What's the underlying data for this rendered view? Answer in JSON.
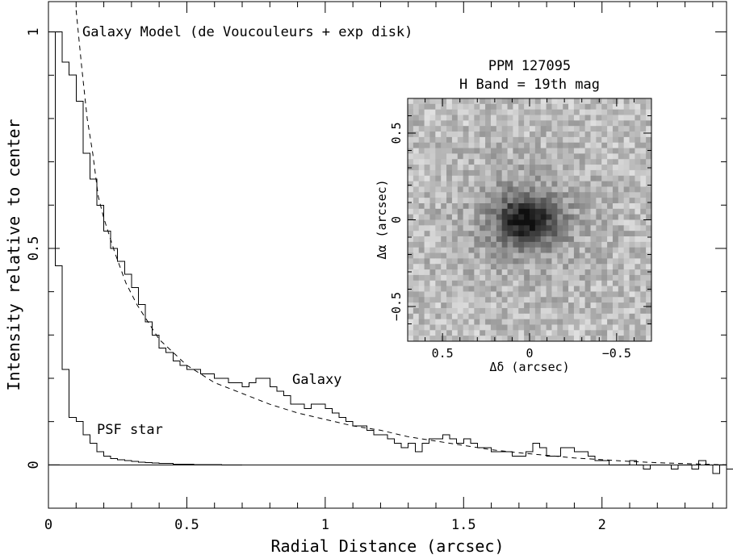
{
  "chart_data": {
    "type": "line",
    "xlabel": "Radial Distance (arcsec)",
    "ylabel": "Intensity relative to center",
    "xlim": [
      0,
      2.45
    ],
    "ylim": [
      -0.1,
      1.07
    ],
    "x_ticks": [
      "0",
      "0.5",
      "1",
      "1.5",
      "2"
    ],
    "y_ticks": [
      "0",
      "0.5",
      "1"
    ],
    "zero_line": true,
    "annotations": {
      "model": "Galaxy Model (de Voucouleurs + exp disk)",
      "galaxy": "Galaxy",
      "psf": "PSF star"
    },
    "series": [
      {
        "name": "Galaxy",
        "style": "histogram-step",
        "bin_width": 0.025,
        "x_start": 0.0,
        "values": [
          1.0,
          1.0,
          0.93,
          0.9,
          0.84,
          0.72,
          0.66,
          0.6,
          0.54,
          0.5,
          0.47,
          0.44,
          0.41,
          0.37,
          0.33,
          0.3,
          0.27,
          0.26,
          0.24,
          0.23,
          0.22,
          0.22,
          0.21,
          0.21,
          0.2,
          0.2,
          0.19,
          0.19,
          0.18,
          0.19,
          0.2,
          0.2,
          0.18,
          0.17,
          0.16,
          0.14,
          0.14,
          0.13,
          0.14,
          0.14,
          0.13,
          0.12,
          0.11,
          0.1,
          0.09,
          0.09,
          0.08,
          0.07,
          0.07,
          0.06,
          0.05,
          0.04,
          0.05,
          0.03,
          0.05,
          0.06,
          0.06,
          0.07,
          0.06,
          0.05,
          0.06,
          0.05,
          0.04,
          0.04,
          0.03,
          0.03,
          0.03,
          0.02,
          0.02,
          0.03,
          0.05,
          0.04,
          0.02,
          0.02,
          0.04,
          0.04,
          0.03,
          0.03,
          0.02,
          0.01,
          0.01,
          0.0,
          0.0,
          0.0,
          0.01,
          0.0,
          -0.01,
          0.0,
          0.0,
          0.0,
          -0.01,
          0.0,
          0.0,
          -0.01,
          0.01,
          0.0,
          -0.02,
          0.0,
          -0.01
        ]
      },
      {
        "name": "PSF star",
        "style": "histogram-step",
        "bin_width": 0.025,
        "x_start": 0.0,
        "values": [
          1.0,
          0.46,
          0.22,
          0.11,
          0.1,
          0.07,
          0.05,
          0.03,
          0.02,
          0.015,
          0.012,
          0.01,
          0.008,
          0.006,
          0.005,
          0.004,
          0.003,
          0.003,
          0.002,
          0.002,
          0.002,
          0.001,
          0.001,
          0.001,
          0.001,
          0.0,
          0.0,
          0.0
        ]
      },
      {
        "name": "Galaxy Model (de Voucouleurs + exp disk)",
        "style": "dashed-curve",
        "x": [
          0.1,
          0.12,
          0.14,
          0.16,
          0.18,
          0.2,
          0.24,
          0.28,
          0.32,
          0.36,
          0.4,
          0.5,
          0.6,
          0.7,
          0.8,
          0.9,
          1.0,
          1.1,
          1.2,
          1.3,
          1.4,
          1.5,
          1.6,
          1.7,
          1.8,
          1.9,
          2.0,
          2.1,
          2.2,
          2.3,
          2.45
        ],
        "y": [
          1.05,
          0.92,
          0.8,
          0.72,
          0.62,
          0.57,
          0.49,
          0.42,
          0.37,
          0.33,
          0.29,
          0.23,
          0.19,
          0.165,
          0.14,
          0.12,
          0.105,
          0.09,
          0.08,
          0.065,
          0.055,
          0.045,
          0.035,
          0.028,
          0.022,
          0.016,
          0.012,
          0.008,
          0.005,
          0.003,
          0.0
        ]
      }
    ]
  },
  "inset": {
    "title_line1": "PPM 127095",
    "title_line2": "H Band = 19th mag",
    "xlabel": "Δδ (arcsec)",
    "ylabel": "Δα (arcsec)",
    "x_ticks": [
      "0.5",
      "0",
      "−0.5"
    ],
    "y_ticks": [
      "0.5",
      "0",
      "−0.5"
    ],
    "xlim": [
      0.7,
      -0.7
    ],
    "ylim": [
      -0.7,
      0.7
    ],
    "colormap": "grayscale",
    "source_position": [
      0.0,
      0.0
    ]
  }
}
